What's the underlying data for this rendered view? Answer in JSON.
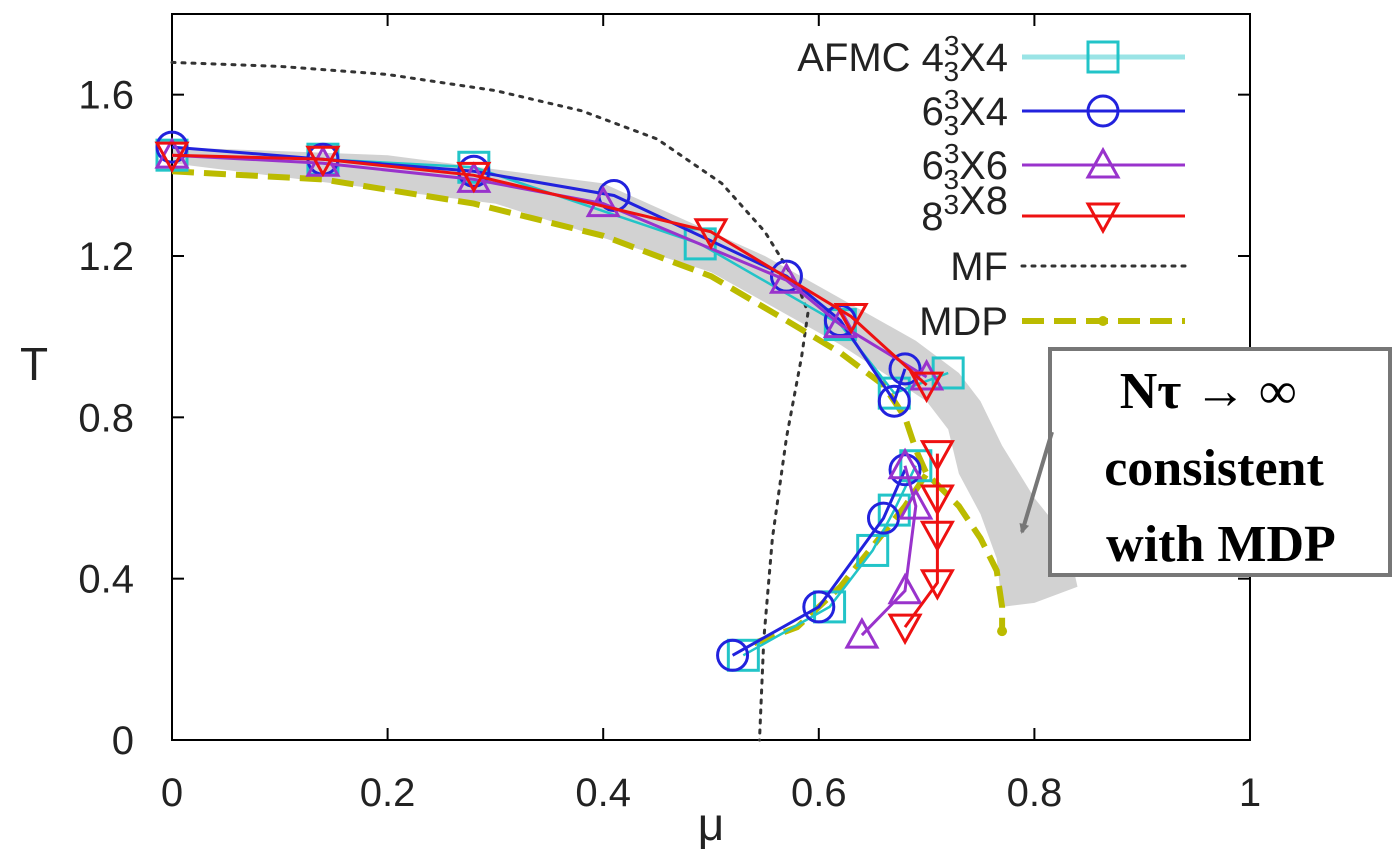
{
  "chart_data": {
    "type": "line",
    "xlabel": "μ",
    "ylabel": "T",
    "xlim": [
      0,
      1
    ],
    "ylim": [
      0,
      1.8
    ],
    "xticks": [
      "0",
      "0.2",
      "0.4",
      "0.6",
      "0.8",
      "1"
    ],
    "yticks": [
      "0",
      "0.4",
      "0.8",
      "1.2",
      "1.6"
    ],
    "legend_position": "top-right",
    "colors": {
      "afmc4": "#22c4c8",
      "afmc6x4": "#2222dd",
      "afmc6x6": "#9933cc",
      "afmc8": "#ee1111",
      "mf": "#333333",
      "mdp": "#bbbb00",
      "band": "#b4b4b4",
      "note_border": "#777777"
    },
    "legend": [
      {
        "key": "afmc4",
        "label": "AFMC 4",
        "sup": "3",
        "sub": "3",
        "tail": "X4"
      },
      {
        "key": "afmc6x4",
        "label": "6",
        "sup": "3",
        "sub": "3",
        "tail": "X4"
      },
      {
        "key": "afmc6x6",
        "label": "6",
        "sup": "3",
        "sub": "3",
        "tail": "X6"
      },
      {
        "key": "afmc8",
        "label": "8",
        "sup": "3",
        "sub": "",
        "tail": "X8"
      },
      {
        "key": "mf",
        "label": "MF",
        "sup": "",
        "sub": "",
        "tail": ""
      },
      {
        "key": "mdp",
        "label": "MDP",
        "sup": "",
        "sub": "",
        "tail": ""
      }
    ],
    "series": [
      {
        "key": "afmc4",
        "marker": "square",
        "upper": [
          [
            0.0,
            1.45
          ],
          [
            0.14,
            1.44
          ],
          [
            0.28,
            1.42
          ],
          [
            0.49,
            1.23
          ],
          [
            0.62,
            1.03
          ],
          [
            0.67,
            0.86
          ],
          [
            0.72,
            0.91
          ]
        ],
        "lower": [
          [
            0.53,
            0.21
          ],
          [
            0.61,
            0.33
          ],
          [
            0.65,
            0.47
          ],
          [
            0.67,
            0.57
          ],
          [
            0.69,
            0.68
          ]
        ]
      },
      {
        "key": "afmc6x4",
        "marker": "circle",
        "upper": [
          [
            0.0,
            1.47
          ],
          [
            0.14,
            1.44
          ],
          [
            0.28,
            1.41
          ],
          [
            0.41,
            1.35
          ],
          [
            0.57,
            1.15
          ],
          [
            0.62,
            1.04
          ],
          [
            0.67,
            0.84
          ],
          [
            0.68,
            0.92
          ]
        ],
        "lower": [
          [
            0.52,
            0.21
          ],
          [
            0.6,
            0.33
          ],
          [
            0.66,
            0.55
          ],
          [
            0.68,
            0.67
          ]
        ]
      },
      {
        "key": "afmc6x6",
        "marker": "triangle-up",
        "upper": [
          [
            0.0,
            1.45
          ],
          [
            0.14,
            1.43
          ],
          [
            0.28,
            1.39
          ],
          [
            0.4,
            1.33
          ],
          [
            0.57,
            1.14
          ],
          [
            0.62,
            1.03
          ],
          [
            0.7,
            0.9
          ]
        ],
        "lower": [
          [
            0.64,
            0.26
          ],
          [
            0.68,
            0.37
          ],
          [
            0.69,
            0.58
          ],
          [
            0.68,
            0.68
          ]
        ]
      },
      {
        "key": "afmc8",
        "marker": "triangle-down",
        "upper": [
          [
            0.0,
            1.45
          ],
          [
            0.14,
            1.44
          ],
          [
            0.28,
            1.4
          ],
          [
            0.5,
            1.26
          ],
          [
            0.63,
            1.05
          ],
          [
            0.7,
            0.88
          ]
        ],
        "lower": [
          [
            0.68,
            0.28
          ],
          [
            0.71,
            0.39
          ],
          [
            0.71,
            0.51
          ],
          [
            0.71,
            0.6
          ],
          [
            0.71,
            0.71
          ]
        ]
      },
      {
        "key": "mf",
        "style": "dotted",
        "points": [
          [
            0.0,
            1.68
          ],
          [
            0.1,
            1.67
          ],
          [
            0.2,
            1.65
          ],
          [
            0.3,
            1.61
          ],
          [
            0.38,
            1.56
          ],
          [
            0.45,
            1.49
          ],
          [
            0.51,
            1.38
          ],
          [
            0.55,
            1.26
          ],
          [
            0.58,
            1.13
          ],
          [
            0.59,
            1.06
          ],
          [
            0.584,
            0.95
          ],
          [
            0.57,
            0.75
          ],
          [
            0.557,
            0.5
          ],
          [
            0.549,
            0.25
          ],
          [
            0.545,
            0.0
          ]
        ]
      },
      {
        "key": "mdp",
        "style": "dashed",
        "points": [
          [
            0.0,
            1.41
          ],
          [
            0.14,
            1.39
          ],
          [
            0.28,
            1.33
          ],
          [
            0.4,
            1.25
          ],
          [
            0.5,
            1.15
          ],
          [
            0.57,
            1.04
          ],
          [
            0.62,
            0.96
          ],
          [
            0.66,
            0.88
          ],
          [
            0.68,
            0.8
          ],
          [
            0.69,
            0.72
          ],
          [
            0.7,
            0.66
          ],
          [
            0.73,
            0.58
          ],
          [
            0.75,
            0.5
          ],
          [
            0.765,
            0.42
          ],
          [
            0.77,
            0.33
          ],
          [
            0.77,
            0.27
          ]
        ],
        "lower_branch": [
          [
            0.54,
            0.24
          ],
          [
            0.58,
            0.28
          ],
          [
            0.62,
            0.38
          ],
          [
            0.65,
            0.48
          ],
          [
            0.68,
            0.58
          ],
          [
            0.7,
            0.66
          ]
        ]
      }
    ],
    "annotation": {
      "lines": [
        "Nτ → ∞",
        "consistent",
        "with MDP"
      ]
    }
  }
}
